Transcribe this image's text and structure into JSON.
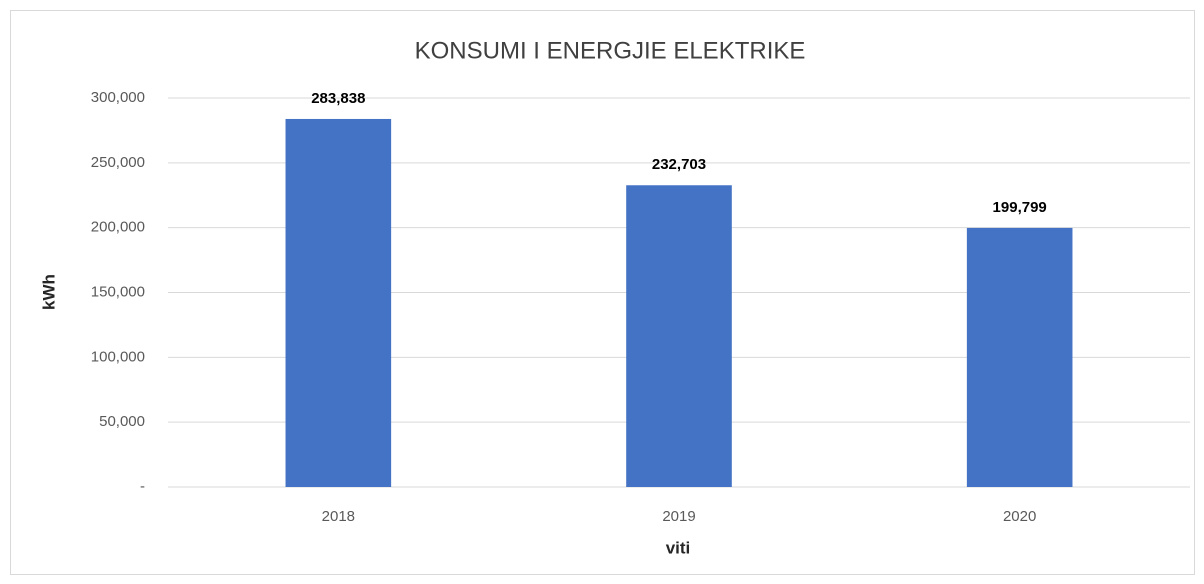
{
  "chart_data": {
    "type": "bar",
    "title": "KONSUMI I ENERGJIE ELEKTRIKE",
    "x_label": "viti",
    "y_label": "kWh",
    "categories": [
      "2018",
      "2019",
      "2020"
    ],
    "values": [
      283838,
      232703,
      199799
    ],
    "value_labels": [
      "283,838",
      "232,703",
      "199,799"
    ],
    "color": "#4472c4",
    "ylim": [
      0,
      300000
    ],
    "yticks": [
      {
        "value": 0,
        "label": "-"
      },
      {
        "value": 50000,
        "label": "50,000"
      },
      {
        "value": 100000,
        "label": "100,000"
      },
      {
        "value": 150000,
        "label": "150,000"
      },
      {
        "value": 200000,
        "label": "200,000"
      },
      {
        "value": 250000,
        "label": "250,000"
      },
      {
        "value": 300000,
        "label": "300,000"
      }
    ],
    "grid": true
  }
}
